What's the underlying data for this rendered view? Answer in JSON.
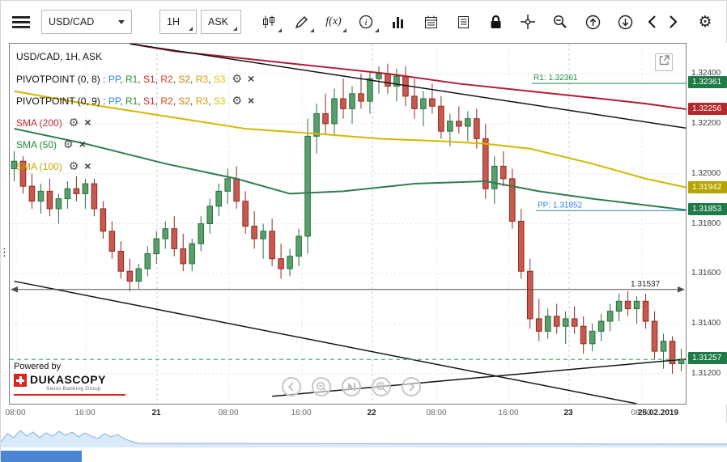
{
  "toolbar": {
    "symbol": "USD/CAD",
    "timeframe": "1H",
    "price_side": "ASK",
    "fx_label": "f(x)",
    "icon_names": [
      "menu-icon",
      "symbol-dropdown",
      "timeframe-dropdown",
      "side-dropdown",
      "chart-type-candles-icon",
      "draw-pencil-icon",
      "indicators-fx-icon",
      "info-icon",
      "volume-bars-icon",
      "calendar-icon",
      "news-journal-icon",
      "lock-icon",
      "crosshair-icon",
      "zoom-out-icon",
      "export-up-icon",
      "export-down-icon",
      "scroll-left-icon",
      "scroll-right-icon",
      "settings-gear-icon"
    ]
  },
  "chart": {
    "legend": {
      "rows": [
        {
          "kind": "title",
          "text": "USD/CAD, 1H, ASK"
        },
        {
          "kind": "pivot",
          "name": "PIVOTPOINT (0, 8)",
          "items": [
            {
              "label": "PP",
              "color": "#2f80e0"
            },
            {
              "label": "R1",
              "color": "#2e8b2e"
            },
            {
              "label": "S1",
              "color": "#cc2222"
            },
            {
              "label": "R2",
              "color": "#cc4b22"
            },
            {
              "label": "S2",
              "color": "#d97b00"
            },
            {
              "label": "R3",
              "color": "#c9a300"
            },
            {
              "label": "S3",
              "color": "#d9c400"
            }
          ]
        },
        {
          "kind": "pivot",
          "name": "PIVOTPOINT (0, 9)",
          "items": [
            {
              "label": "PP",
              "color": "#2f80e0"
            },
            {
              "label": "R1",
              "color": "#2e8b2e"
            },
            {
              "label": "S1",
              "color": "#cc2222"
            },
            {
              "label": "R2",
              "color": "#cc4b22"
            },
            {
              "label": "S2",
              "color": "#d97b00"
            },
            {
              "label": "R3",
              "color": "#c9a300"
            },
            {
              "label": "S3",
              "color": "#d9c400"
            }
          ]
        },
        {
          "kind": "ind",
          "name": "SMA (200)",
          "color": "#c22a35"
        },
        {
          "kind": "ind",
          "name": "SMA (50)",
          "color": "#1e8b3a"
        },
        {
          "kind": "ind",
          "name": "SMA (100)",
          "color": "#c9a300"
        }
      ],
      "settings_glyph": "⚙",
      "close_glyph": "×"
    },
    "powered_by": {
      "text": "Powered by",
      "brand": "DUKASCOPY",
      "tagline": "Swiss Banking Group"
    },
    "nav_buttons": [
      {
        "name": "pan-left-button",
        "glyph": "left"
      },
      {
        "name": "zoom-out-button",
        "glyph": "zoomout"
      },
      {
        "name": "skip-latest-button",
        "glyph": "skipend"
      },
      {
        "name": "zoom-in-button",
        "glyph": "zoomin"
      },
      {
        "name": "play-right-button",
        "glyph": "right"
      }
    ]
  },
  "price_axis": {
    "ticks": [
      {
        "label": "1.32400",
        "value": 1.324
      },
      {
        "label": "1.32200",
        "value": 1.322
      },
      {
        "label": "1.32000",
        "value": 1.32
      },
      {
        "label": "1.31800",
        "value": 1.318
      },
      {
        "label": "1.31600",
        "value": 1.316
      },
      {
        "label": "1.31400",
        "value": 1.314
      },
      {
        "label": "1.31200",
        "value": 1.312
      }
    ],
    "badges": [
      {
        "label": "1.32361",
        "price": 1.32361,
        "color": "#1e7a46"
      },
      {
        "label": "1.32256",
        "price": 1.32256,
        "color": "#b3282d"
      },
      {
        "label": "1.31942",
        "price": 1.31942,
        "color": "#b8a400"
      },
      {
        "label": "1.31853",
        "price": 1.31853,
        "color": "#1e7a46"
      },
      {
        "label": "1.31257",
        "price": 1.31257,
        "color": "#1e7a46"
      }
    ]
  },
  "time_axis": {
    "labels": [
      {
        "text": "08:00",
        "x": 8,
        "day": false,
        "grid": true
      },
      {
        "text": "16:00",
        "x": 94,
        "day": false,
        "grid": true
      },
      {
        "text": "21",
        "x": 182,
        "day": true,
        "grid": true
      },
      {
        "text": "08:00",
        "x": 271,
        "day": false,
        "grid": true
      },
      {
        "text": "16:00",
        "x": 361,
        "day": false,
        "grid": true
      },
      {
        "text": "22",
        "x": 448,
        "day": true,
        "grid": true
      },
      {
        "text": "08:00",
        "x": 528,
        "day": false,
        "grid": true
      },
      {
        "text": "16:00",
        "x": 617,
        "day": false,
        "grid": true
      },
      {
        "text": "23",
        "x": 691,
        "day": true,
        "grid": true
      },
      {
        "text": "08:00",
        "x": 781,
        "day": false,
        "grid": true
      },
      {
        "text": "25.02.2019",
        "x": 802,
        "day": true,
        "grid": false
      }
    ]
  },
  "chart_data": {
    "type": "candlestick",
    "symbol": "USD/CAD",
    "timeframe": "1H",
    "side": "ASK",
    "y_range": [
      1.3108,
      1.3252
    ],
    "colors": {
      "up_fill": "#57a06b",
      "up_stroke": "#2c6e3f",
      "down_fill": "#c9584e",
      "down_stroke": "#8e2c22"
    },
    "candles": [
      [
        1.3202,
        1.3209,
        1.3197,
        1.3205
      ],
      [
        1.3205,
        1.3207,
        1.3192,
        1.3195
      ],
      [
        1.3195,
        1.32,
        1.3186,
        1.3189
      ],
      [
        1.3189,
        1.3196,
        1.3184,
        1.3193
      ],
      [
        1.3193,
        1.3198,
        1.3183,
        1.3186
      ],
      [
        1.3186,
        1.3192,
        1.318,
        1.319
      ],
      [
        1.319,
        1.3197,
        1.3186,
        1.3194
      ],
      [
        1.3194,
        1.3199,
        1.3189,
        1.3192
      ],
      [
        1.3192,
        1.3198,
        1.3186,
        1.3196
      ],
      [
        1.3196,
        1.3198,
        1.3183,
        1.3186
      ],
      [
        1.3186,
        1.3189,
        1.3174,
        1.3177
      ],
      [
        1.3177,
        1.3181,
        1.3166,
        1.3169
      ],
      [
        1.3169,
        1.3173,
        1.3158,
        1.3161
      ],
      [
        1.3161,
        1.3166,
        1.3153,
        1.3157
      ],
      [
        1.3157,
        1.3164,
        1.3154,
        1.3162
      ],
      [
        1.3162,
        1.3171,
        1.3159,
        1.3168
      ],
      [
        1.3168,
        1.3177,
        1.3164,
        1.3174
      ],
      [
        1.3174,
        1.3181,
        1.317,
        1.3178
      ],
      [
        1.3178,
        1.3183,
        1.3167,
        1.317
      ],
      [
        1.317,
        1.3176,
        1.3161,
        1.3164
      ],
      [
        1.3164,
        1.3174,
        1.3161,
        1.3172
      ],
      [
        1.3172,
        1.3183,
        1.3169,
        1.318
      ],
      [
        1.318,
        1.319,
        1.3176,
        1.3187
      ],
      [
        1.3187,
        1.3196,
        1.3183,
        1.3193
      ],
      [
        1.3193,
        1.3202,
        1.3188,
        1.3198
      ],
      [
        1.3198,
        1.3203,
        1.3186,
        1.3189
      ],
      [
        1.3189,
        1.3193,
        1.3176,
        1.3179
      ],
      [
        1.3179,
        1.3185,
        1.317,
        1.3174
      ],
      [
        1.3174,
        1.318,
        1.3166,
        1.3177
      ],
      [
        1.3177,
        1.3182,
        1.3163,
        1.3166
      ],
      [
        1.3166,
        1.3172,
        1.3158,
        1.3162
      ],
      [
        1.3162,
        1.317,
        1.3159,
        1.3167
      ],
      [
        1.3167,
        1.3178,
        1.3163,
        1.3175
      ],
      [
        1.3175,
        1.3222,
        1.3168,
        1.3215
      ],
      [
        1.3215,
        1.3228,
        1.3208,
        1.3224
      ],
      [
        1.3224,
        1.3232,
        1.3216,
        1.322
      ],
      [
        1.322,
        1.3234,
        1.3215,
        1.323
      ],
      [
        1.323,
        1.3238,
        1.3222,
        1.3226
      ],
      [
        1.3226,
        1.3235,
        1.322,
        1.3232
      ],
      [
        1.3232,
        1.324,
        1.3226,
        1.3229
      ],
      [
        1.3229,
        1.3241,
        1.3224,
        1.3238
      ],
      [
        1.3238,
        1.3243,
        1.3232,
        1.324
      ],
      [
        1.324,
        1.3244,
        1.3232,
        1.3235
      ],
      [
        1.3235,
        1.3242,
        1.3229,
        1.3239
      ],
      [
        1.3239,
        1.3243,
        1.3227,
        1.3231
      ],
      [
        1.3231,
        1.3238,
        1.3222,
        1.3226
      ],
      [
        1.3226,
        1.3233,
        1.3219,
        1.323
      ],
      [
        1.323,
        1.3236,
        1.3224,
        1.3227
      ],
      [
        1.3227,
        1.3231,
        1.3214,
        1.3217
      ],
      [
        1.3217,
        1.3224,
        1.3211,
        1.3221
      ],
      [
        1.3221,
        1.3227,
        1.3216,
        1.3219
      ],
      [
        1.3219,
        1.3225,
        1.3213,
        1.3222
      ],
      [
        1.3222,
        1.3226,
        1.321,
        1.3214
      ],
      [
        1.3214,
        1.322,
        1.319,
        1.3194
      ],
      [
        1.3194,
        1.3207,
        1.3188,
        1.3203
      ],
      [
        1.3203,
        1.3209,
        1.3195,
        1.3198
      ],
      [
        1.3198,
        1.3202,
        1.3178,
        1.3181
      ],
      [
        1.3181,
        1.3186,
        1.3158,
        1.3161
      ],
      [
        1.3161,
        1.3166,
        1.3138,
        1.3142
      ],
      [
        1.3142,
        1.315,
        1.3133,
        1.3137
      ],
      [
        1.3137,
        1.3146,
        1.3134,
        1.3143
      ],
      [
        1.3143,
        1.3148,
        1.3136,
        1.3139
      ],
      [
        1.3139,
        1.3145,
        1.3132,
        1.3142
      ],
      [
        1.3142,
        1.3147,
        1.3136,
        1.3139
      ],
      [
        1.3139,
        1.3143,
        1.3128,
        1.3132
      ],
      [
        1.3132,
        1.314,
        1.3129,
        1.3137
      ],
      [
        1.3137,
        1.3144,
        1.3133,
        1.3141
      ],
      [
        1.3141,
        1.3148,
        1.3137,
        1.3145
      ],
      [
        1.3145,
        1.3152,
        1.3141,
        1.3149
      ],
      [
        1.3149,
        1.3153,
        1.3143,
        1.3146
      ],
      [
        1.3146,
        1.3151,
        1.314,
        1.3149
      ],
      [
        1.3149,
        1.3152,
        1.3138,
        1.3141
      ],
      [
        1.3141,
        1.3145,
        1.3126,
        1.3129
      ],
      [
        1.3129,
        1.3136,
        1.3122,
        1.3133
      ],
      [
        1.3133,
        1.3135,
        1.312,
        1.3124
      ],
      [
        1.3124,
        1.313,
        1.3121,
        1.31257
      ]
    ],
    "overlays": [
      {
        "name": "SMA (200)",
        "color": "#b01d32",
        "points": [
          [
            13,
            1.3252
          ],
          [
            18,
            1.3249
          ],
          [
            26,
            1.3246
          ],
          [
            34,
            1.3243
          ],
          [
            42,
            1.324
          ],
          [
            50,
            1.3236
          ],
          [
            58,
            1.3233
          ],
          [
            66,
            1.323
          ],
          [
            71,
            1.3228
          ],
          [
            76,
            1.32256
          ]
        ]
      },
      {
        "name": "SMA (100)",
        "color": "#d4b800",
        "points": [
          [
            0,
            1.3233
          ],
          [
            8,
            1.3228
          ],
          [
            17,
            1.3223
          ],
          [
            26,
            1.3218
          ],
          [
            34,
            1.3216
          ],
          [
            41,
            1.3214
          ],
          [
            48,
            1.3213
          ],
          [
            53,
            1.3212
          ],
          [
            58,
            1.321
          ],
          [
            65,
            1.3204
          ],
          [
            71,
            1.3198
          ],
          [
            76,
            1.31942
          ]
        ]
      },
      {
        "name": "SMA (50)",
        "color": "#2e7d4f",
        "points": [
          [
            0,
            1.3218
          ],
          [
            8,
            1.3212
          ],
          [
            17,
            1.3204
          ],
          [
            25,
            1.3198
          ],
          [
            31,
            1.3192
          ],
          [
            37,
            1.3193
          ],
          [
            45,
            1.3196
          ],
          [
            53,
            1.3197
          ],
          [
            59,
            1.3193
          ],
          [
            65,
            1.319
          ],
          [
            72,
            1.3187
          ],
          [
            76,
            1.31853
          ]
        ]
      }
    ],
    "trendlines": [
      {
        "name": "upper-descending",
        "color": "#141414",
        "points": [
          [
            13,
            1.3252
          ],
          [
            76,
            1.3218
          ]
        ]
      },
      {
        "name": "lower-descending",
        "color": "#141414",
        "points": [
          [
            0,
            1.3157
          ],
          [
            70,
            1.3108
          ]
        ]
      },
      {
        "name": "lower-ascending",
        "color": "#141414",
        "points": [
          [
            29,
            1.3111
          ],
          [
            76,
            1.3126
          ]
        ]
      }
    ],
    "pivot_lines": [
      {
        "label": "R1: 1.32361",
        "price": 1.32361,
        "color": "#1f8a4c",
        "x_from": 645
      },
      {
        "label": "PP: 1.31852",
        "price": 1.31852,
        "color": "#2f80e0",
        "x_from": 650
      }
    ],
    "horizontal_line": {
      "label": "1.31537",
      "price": 1.31537,
      "color": "#4d4d4d"
    },
    "current_price": {
      "price": 1.31257,
      "color": "#2fa05a"
    }
  },
  "navigator": {
    "spark": [
      [
        0,
        22
      ],
      [
        8,
        12
      ],
      [
        16,
        17
      ],
      [
        24,
        8
      ],
      [
        32,
        15
      ],
      [
        40,
        10
      ],
      [
        48,
        17
      ],
      [
        56,
        11
      ],
      [
        64,
        15
      ],
      [
        72,
        9
      ],
      [
        80,
        14
      ],
      [
        88,
        10
      ],
      [
        96,
        16
      ],
      [
        104,
        11
      ],
      [
        112,
        15
      ],
      [
        120,
        18
      ],
      [
        128,
        12
      ],
      [
        136,
        16
      ],
      [
        144,
        13
      ],
      [
        152,
        18
      ],
      [
        160,
        21
      ],
      [
        170,
        24
      ],
      [
        898,
        25
      ]
    ]
  }
}
